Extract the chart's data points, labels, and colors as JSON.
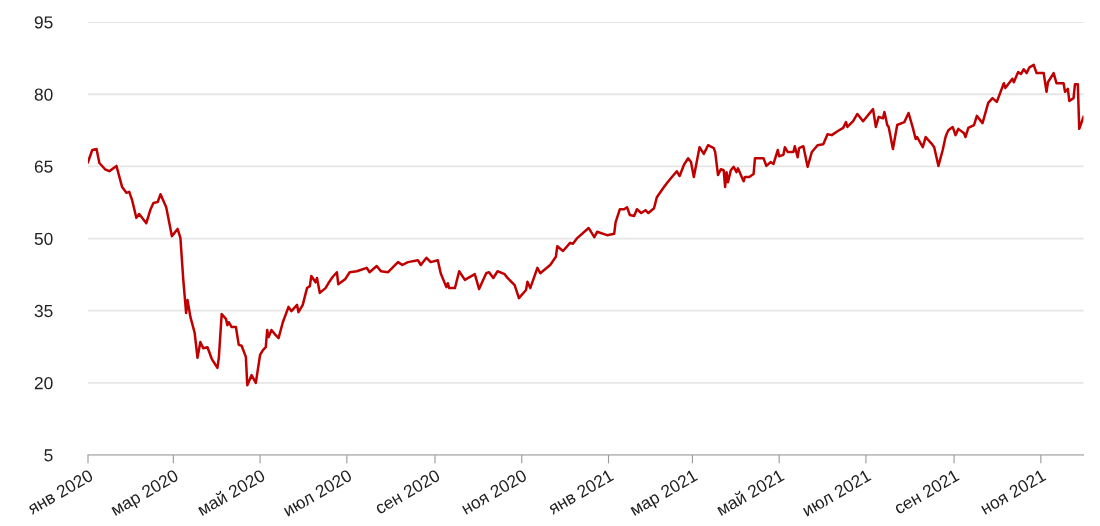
{
  "chart_data": {
    "type": "line",
    "x": [
      "2020-01-01",
      "2020-01-04",
      "2020-01-07",
      "2020-01-09",
      "2020-01-13",
      "2020-01-16",
      "2020-01-21",
      "2020-01-25",
      "2020-01-28",
      "2020-01-30",
      "2020-02-01",
      "2020-02-04",
      "2020-02-06",
      "2020-02-11",
      "2020-02-14",
      "2020-02-16",
      "2020-02-19",
      "2020-02-21",
      "2020-02-25",
      "2020-02-29",
      "2020-03-04",
      "2020-03-06",
      "2020-03-08",
      "2020-03-10",
      "2020-03-11",
      "2020-03-13",
      "2020-03-16",
      "2020-03-18",
      "2020-03-20",
      "2020-03-22",
      "2020-03-25",
      "2020-03-28",
      "2020-04-01",
      "2020-04-02",
      "2020-04-04",
      "2020-04-07",
      "2020-04-08",
      "2020-04-09",
      "2020-04-11",
      "2020-04-14",
      "2020-04-16",
      "2020-04-18",
      "2020-04-21",
      "2020-04-22",
      "2020-04-25",
      "2020-04-28",
      "2020-05-01",
      "2020-05-03",
      "2020-05-05",
      "2020-05-06",
      "2020-05-07",
      "2020-05-09",
      "2020-05-12",
      "2020-05-14",
      "2020-05-17",
      "2020-05-21",
      "2020-05-23",
      "2020-05-27",
      "2020-05-28",
      "2020-05-31",
      "2020-06-03",
      "2020-06-05",
      "2020-06-06",
      "2020-06-09",
      "2020-06-10",
      "2020-06-12",
      "2020-06-16",
      "2020-06-18",
      "2020-06-21",
      "2020-06-24",
      "2020-06-25",
      "2020-06-30",
      "2020-07-03",
      "2020-07-08",
      "2020-07-15",
      "2020-07-17",
      "2020-07-22",
      "2020-07-25",
      "2020-07-30",
      "2020-08-06",
      "2020-08-09",
      "2020-08-13",
      "2020-08-20",
      "2020-08-22",
      "2020-08-26",
      "2020-08-29",
      "2020-09-03",
      "2020-09-05",
      "2020-09-09",
      "2020-09-10",
      "2020-09-11",
      "2020-09-15",
      "2020-09-18",
      "2020-09-22",
      "2020-09-29",
      "2020-10-02",
      "2020-10-07",
      "2020-10-09",
      "2020-10-12",
      "2020-10-15",
      "2020-10-20",
      "2020-10-22",
      "2020-10-27",
      "2020-10-30",
      "2020-11-04",
      "2020-11-05",
      "2020-11-07",
      "2020-11-12",
      "2020-11-14",
      "2020-11-21",
      "2020-11-25",
      "2020-11-26",
      "2020-11-30",
      "2020-12-05",
      "2020-12-07",
      "2020-12-10",
      "2020-12-18",
      "2020-12-22",
      "2020-12-24",
      "2020-12-31",
      "2021-01-05",
      "2021-01-06",
      "2021-01-07",
      "2021-01-09",
      "2021-01-12",
      "2021-01-14",
      "2021-01-16",
      "2021-01-19",
      "2021-01-21",
      "2021-01-24",
      "2021-01-27",
      "2021-01-29",
      "2021-02-02",
      "2021-02-04",
      "2021-02-09",
      "2021-02-11",
      "2021-02-14",
      "2021-02-18",
      "2021-02-20",
      "2021-02-23",
      "2021-02-26",
      "2021-02-28",
      "2021-03-02",
      "2021-03-06",
      "2021-03-09",
      "2021-03-12",
      "2021-03-16",
      "2021-03-17",
      "2021-03-19",
      "2021-03-21",
      "2021-03-23",
      "2021-03-24",
      "2021-03-25",
      "2021-03-26",
      "2021-03-28",
      "2021-03-30",
      "2021-04-01",
      "2021-04-02",
      "2021-04-06",
      "2021-04-07",
      "2021-04-10",
      "2021-04-13",
      "2021-04-14",
      "2021-04-20",
      "2021-04-22",
      "2021-04-25",
      "2021-04-27",
      "2021-04-30",
      "2021-05-01",
      "2021-05-04",
      "2021-05-05",
      "2021-05-07",
      "2021-05-11",
      "2021-05-12",
      "2021-05-14",
      "2021-05-15",
      "2021-05-18",
      "2021-05-21",
      "2021-05-24",
      "2021-05-28",
      "2021-06-01",
      "2021-06-04",
      "2021-06-07",
      "2021-06-11",
      "2021-06-15",
      "2021-06-17",
      "2021-06-18",
      "2021-06-22",
      "2021-06-25",
      "2021-06-29",
      "2021-07-06",
      "2021-07-08",
      "2021-07-10",
      "2021-07-13",
      "2021-07-14",
      "2021-07-16",
      "2021-07-17",
      "2021-07-20",
      "2021-07-23",
      "2021-07-28",
      "2021-07-31",
      "2021-08-03",
      "2021-08-05",
      "2021-08-06",
      "2021-08-10",
      "2021-08-12",
      "2021-08-16",
      "2021-08-18",
      "2021-08-21",
      "2021-08-24",
      "2021-08-26",
      "2021-08-27",
      "2021-08-28",
      "2021-08-31",
      "2021-09-02",
      "2021-09-04",
      "2021-09-08",
      "2021-09-09",
      "2021-09-11",
      "2021-09-15",
      "2021-09-17",
      "2021-09-21",
      "2021-09-25",
      "2021-09-28",
      "2021-10-01",
      "2021-10-06",
      "2021-10-07",
      "2021-10-12",
      "2021-10-13",
      "2021-10-16",
      "2021-10-18",
      "2021-10-20",
      "2021-10-22",
      "2021-10-24",
      "2021-10-27",
      "2021-10-29",
      "2021-11-03",
      "2021-11-05",
      "2021-11-06",
      "2021-11-10",
      "2021-11-12",
      "2021-11-17",
      "2021-11-18",
      "2021-11-20",
      "2021-11-21",
      "2021-11-24",
      "2021-11-25",
      "2021-11-27",
      "2021-11-28",
      "2021-12-01"
    ],
    "series": [
      {
        "color": "#c00000",
        "values": [
          65.9,
          68.4,
          68.6,
          65.7,
          64.4,
          64.0,
          65.1,
          60.7,
          59.5,
          59.7,
          58.0,
          54.3,
          55.1,
          53.2,
          56.1,
          57.4,
          57.6,
          59.2,
          56.5,
          50.5,
          52.0,
          50.1,
          41.4,
          34.5,
          37.2,
          33.7,
          30.4,
          25.2,
          28.5,
          27.2,
          27.4,
          25.0,
          23.1,
          25.2,
          34.3,
          33.3,
          32.0,
          32.6,
          31.6,
          31.6,
          27.9,
          27.7,
          25.4,
          19.5,
          21.6,
          20.0,
          25.8,
          26.8,
          27.4,
          31.0,
          29.5,
          31.0,
          29.9,
          29.3,
          32.6,
          35.8,
          34.9,
          36.2,
          34.7,
          36.2,
          39.7,
          40.1,
          42.2,
          40.9,
          41.8,
          38.7,
          39.7,
          40.7,
          42.0,
          43.0,
          40.5,
          41.6,
          43.0,
          43.2,
          43.9,
          43.0,
          44.3,
          43.2,
          43.0,
          45.1,
          44.5,
          45.1,
          45.5,
          44.5,
          46.0,
          45.1,
          45.5,
          42.8,
          39.9,
          40.7,
          39.7,
          39.7,
          43.2,
          41.4,
          42.6,
          39.5,
          42.8,
          43.0,
          41.8,
          43.2,
          42.6,
          41.8,
          40.3,
          37.6,
          39.3,
          41.0,
          39.7,
          43.9,
          42.8,
          44.5,
          46.2,
          48.4,
          47.4,
          49.1,
          48.9,
          50.1,
          52.2,
          50.3,
          51.4,
          50.7,
          51.0,
          53.4,
          54.3,
          56.1,
          56.1,
          56.5,
          54.9,
          54.7,
          56.1,
          55.3,
          55.9,
          55.3,
          56.3,
          58.6,
          60.7,
          61.5,
          62.6,
          64.0,
          63.0,
          65.3,
          66.7,
          65.9,
          62.8,
          69.0,
          67.6,
          69.4,
          68.8,
          68.0,
          63.2,
          64.4,
          64.2,
          60.7,
          63.8,
          61.7,
          64.2,
          64.9,
          63.8,
          64.6,
          61.9,
          62.8,
          62.8,
          63.4,
          66.7,
          66.7,
          65.1,
          65.9,
          65.5,
          68.4,
          67.1,
          67.4,
          69.0,
          68.0,
          68.0,
          69.2,
          66.9,
          68.8,
          69.2,
          64.9,
          68.0,
          69.4,
          69.6,
          71.7,
          71.5,
          72.3,
          73.0,
          74.2,
          73.2,
          74.4,
          75.9,
          74.4,
          76.9,
          73.2,
          75.3,
          75.0,
          76.3,
          73.6,
          73.2,
          68.6,
          73.6,
          74.2,
          76.1,
          73.0,
          70.7,
          71.1,
          69.0,
          71.1,
          69.8,
          69.0,
          65.1,
          68.4,
          71.1,
          71.9,
          72.5,
          73.2,
          71.5,
          72.8,
          71.9,
          71.1,
          73.0,
          73.6,
          75.5,
          74.0,
          78.2,
          79.2,
          78.4,
          82.3,
          81.3,
          83.2,
          82.5,
          84.6,
          84.2,
          85.2,
          84.4,
          85.6,
          86.1,
          84.4,
          84.4,
          80.5,
          82.5,
          84.4,
          82.3,
          82.3,
          80.5,
          81.1,
          78.6,
          79.2,
          82.1,
          82.1,
          72.8,
          75.3
        ]
      }
    ],
    "xlim": [
      "2020-01-01",
      "2021-12-01"
    ],
    "xticks": [
      {
        "value": "2020-01-01",
        "label": "янв 2020"
      },
      {
        "value": "2020-03-01",
        "label": "мар 2020"
      },
      {
        "value": "2020-05-01",
        "label": "май 2020"
      },
      {
        "value": "2020-07-01",
        "label": "июл 2020"
      },
      {
        "value": "2020-09-01",
        "label": "сен 2020"
      },
      {
        "value": "2020-11-01",
        "label": "ноя 2020"
      },
      {
        "value": "2021-01-01",
        "label": "янв 2021"
      },
      {
        "value": "2021-03-01",
        "label": "мар 2021"
      },
      {
        "value": "2021-05-01",
        "label": "май 2021"
      },
      {
        "value": "2021-07-01",
        "label": "июл 2021"
      },
      {
        "value": "2021-09-01",
        "label": "сен 2021"
      },
      {
        "value": "2021-11-01",
        "label": "ноя 2021"
      }
    ],
    "ylim": [
      5,
      95
    ],
    "yticks": [
      5,
      20,
      35,
      50,
      65,
      80,
      95
    ],
    "grid": "y",
    "legend": false,
    "marker": "none",
    "line_style": "solid"
  }
}
